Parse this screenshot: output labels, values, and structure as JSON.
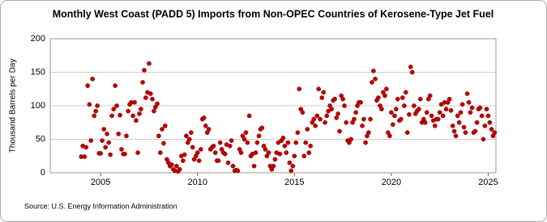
{
  "chart_data": {
    "type": "scatter",
    "title": "Monthly West Coast (PADD 5) Imports from Non-OPEC Countries of Kerosene-Type Jet Fuel",
    "y_label": "Thousand Barrels per Day",
    "source": "Source: U.S. Energy Information Administration",
    "color": "#c00000",
    "grid": true,
    "xlim": [
      2002.4,
      2025.4
    ],
    "xticks": [
      2005,
      2010,
      2015,
      2020,
      2025
    ],
    "ylim": [
      0,
      200
    ],
    "yticks": [
      0,
      50,
      100,
      150,
      200
    ],
    "x": [
      2004,
      2004.08,
      2004.17,
      2004.25,
      2004.33,
      2004.42,
      2004.5,
      2004.58,
      2004.67,
      2004.75,
      2004.83,
      2004.92,
      2005,
      2005.08,
      2005.17,
      2005.25,
      2005.33,
      2005.42,
      2005.5,
      2005.58,
      2005.67,
      2005.75,
      2005.83,
      2005.92,
      2006,
      2006.08,
      2006.17,
      2006.25,
      2006.33,
      2006.42,
      2006.5,
      2006.58,
      2006.67,
      2006.75,
      2006.83,
      2006.92,
      2007,
      2007.08,
      2007.17,
      2007.25,
      2007.33,
      2007.42,
      2007.5,
      2007.58,
      2007.67,
      2007.75,
      2007.83,
      2007.92,
      2008,
      2008.08,
      2008.17,
      2008.25,
      2008.33,
      2008.42,
      2008.5,
      2008.58,
      2008.67,
      2008.75,
      2008.83,
      2008.92,
      2009,
      2009.08,
      2009.17,
      2009.25,
      2009.33,
      2009.42,
      2009.5,
      2009.58,
      2009.67,
      2009.75,
      2009.83,
      2009.92,
      2010,
      2010.08,
      2010.17,
      2010.25,
      2010.33,
      2010.42,
      2010.5,
      2010.58,
      2010.67,
      2010.75,
      2010.83,
      2010.92,
      2011,
      2011.08,
      2011.17,
      2011.25,
      2011.33,
      2011.42,
      2011.5,
      2011.58,
      2011.67,
      2011.75,
      2011.83,
      2011.92,
      2012,
      2012.08,
      2012.17,
      2012.25,
      2012.33,
      2012.42,
      2012.5,
      2012.58,
      2012.67,
      2012.75,
      2012.83,
      2012.92,
      2013,
      2013.08,
      2013.17,
      2013.25,
      2013.33,
      2013.42,
      2013.5,
      2013.58,
      2013.67,
      2013.75,
      2013.83,
      2013.92,
      2014,
      2014.08,
      2014.17,
      2014.25,
      2014.33,
      2014.42,
      2014.5,
      2014.58,
      2014.67,
      2014.75,
      2014.83,
      2014.92,
      2015,
      2015.08,
      2015.17,
      2015.25,
      2015.33,
      2015.42,
      2015.5,
      2015.58,
      2015.67,
      2015.75,
      2015.83,
      2015.92,
      2016,
      2016.08,
      2016.17,
      2016.25,
      2016.33,
      2016.42,
      2016.5,
      2016.58,
      2016.67,
      2016.75,
      2016.83,
      2016.92,
      2017,
      2017.08,
      2017.17,
      2017.25,
      2017.33,
      2017.42,
      2017.5,
      2017.58,
      2017.67,
      2017.75,
      2017.83,
      2017.92,
      2018,
      2018.08,
      2018.17,
      2018.25,
      2018.33,
      2018.42,
      2018.5,
      2018.58,
      2018.67,
      2018.75,
      2018.83,
      2018.92,
      2019,
      2019.08,
      2019.17,
      2019.25,
      2019.33,
      2019.42,
      2019.5,
      2019.58,
      2019.67,
      2019.75,
      2019.83,
      2019.92,
      2020,
      2020.08,
      2020.17,
      2020.25,
      2020.33,
      2020.42,
      2020.5,
      2020.58,
      2020.67,
      2020.75,
      2020.83,
      2020.92,
      2021,
      2021.08,
      2021.17,
      2021.25,
      2021.33,
      2021.42,
      2021.5,
      2021.58,
      2021.67,
      2021.75,
      2021.83,
      2021.92,
      2022,
      2022.08,
      2022.17,
      2022.25,
      2022.33,
      2022.42,
      2022.5,
      2022.58,
      2022.67,
      2022.75,
      2022.83,
      2022.92,
      2023,
      2023.08,
      2023.17,
      2023.25,
      2023.33,
      2023.42,
      2023.5,
      2023.58,
      2023.67,
      2023.75,
      2023.83,
      2023.92,
      2024,
      2024.08,
      2024.17,
      2024.25,
      2024.33,
      2024.42,
      2024.5,
      2024.58,
      2024.67,
      2024.75,
      2024.83,
      2024.92,
      2025,
      2025.08,
      2025.17,
      2025.25,
      2025.33
    ],
    "values": [
      24,
      40,
      24,
      38,
      130,
      102,
      48,
      140,
      85,
      92,
      100,
      29,
      29,
      48,
      65,
      38,
      58,
      45,
      27,
      85,
      95,
      130,
      100,
      58,
      86,
      35,
      28,
      28,
      55,
      92,
      102,
      105,
      85,
      105,
      78,
      30,
      88,
      95,
      135,
      153,
      112,
      120,
      163,
      118,
      110,
      92,
      98,
      103,
      55,
      30,
      65,
      44,
      70,
      20,
      15,
      10,
      12,
      5,
      3,
      10,
      2,
      5,
      25,
      18,
      27,
      55,
      45,
      50,
      60,
      38,
      20,
      25,
      30,
      18,
      35,
      80,
      82,
      70,
      60,
      65,
      35,
      38,
      40,
      30,
      18,
      18,
      45,
      35,
      30,
      28,
      42,
      15,
      40,
      48,
      10,
      3,
      4,
      3,
      35,
      30,
      55,
      50,
      60,
      45,
      85,
      25,
      28,
      10,
      30,
      45,
      55,
      65,
      67,
      40,
      35,
      25,
      30,
      10,
      5,
      10,
      20,
      30,
      45,
      28,
      48,
      52,
      40,
      30,
      45,
      15,
      3,
      10,
      25,
      45,
      60,
      125,
      95,
      90,
      25,
      45,
      65,
      30,
      40,
      75,
      80,
      70,
      85,
      125,
      80,
      112,
      120,
      75,
      85,
      92,
      100,
      95,
      108,
      110,
      82,
      88,
      62,
      115,
      110,
      100,
      75,
      48,
      45,
      50,
      75,
      80,
      90,
      100,
      105,
      105,
      70,
      80,
      45,
      55,
      60,
      80,
      135,
      152,
      140,
      108,
      112,
      100,
      95,
      120,
      115,
      125,
      60,
      55,
      90,
      72,
      85,
      95,
      110,
      78,
      80,
      112,
      100,
      120,
      60,
      87,
      158,
      150,
      100,
      88,
      92,
      95,
      110,
      75,
      80,
      75,
      90,
      110,
      115,
      85,
      78,
      70,
      80,
      80,
      90,
      102,
      85,
      105,
      95,
      105,
      110,
      93,
      70,
      62,
      55,
      85,
      75,
      90,
      102,
      68,
      60,
      118,
      105,
      90,
      97,
      60,
      62,
      75,
      95,
      97,
      85,
      50,
      70,
      95,
      85,
      75,
      65,
      55,
      60
    ]
  }
}
